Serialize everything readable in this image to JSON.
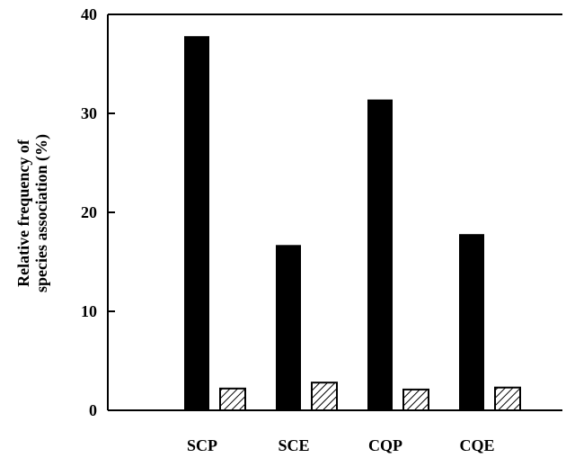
{
  "chart_data": {
    "type": "bar",
    "title": "",
    "xlabel": "",
    "ylabel_lines": [
      "Relative frequency of",
      "species association (%)"
    ],
    "ylim": [
      0,
      40
    ],
    "yticks": [
      "0",
      "10",
      "20",
      "30",
      "40"
    ],
    "categories": [
      "SCP",
      "SCE",
      "CQP",
      "CQE"
    ],
    "series": [
      {
        "values": [
          37.8,
          16.7,
          31.4,
          17.8
        ],
        "fill": "solid",
        "color": "#000000"
      },
      {
        "values": [
          2.2,
          2.8,
          2.1,
          2.3
        ],
        "fill": "hatched",
        "color": "#ffffff"
      }
    ]
  }
}
